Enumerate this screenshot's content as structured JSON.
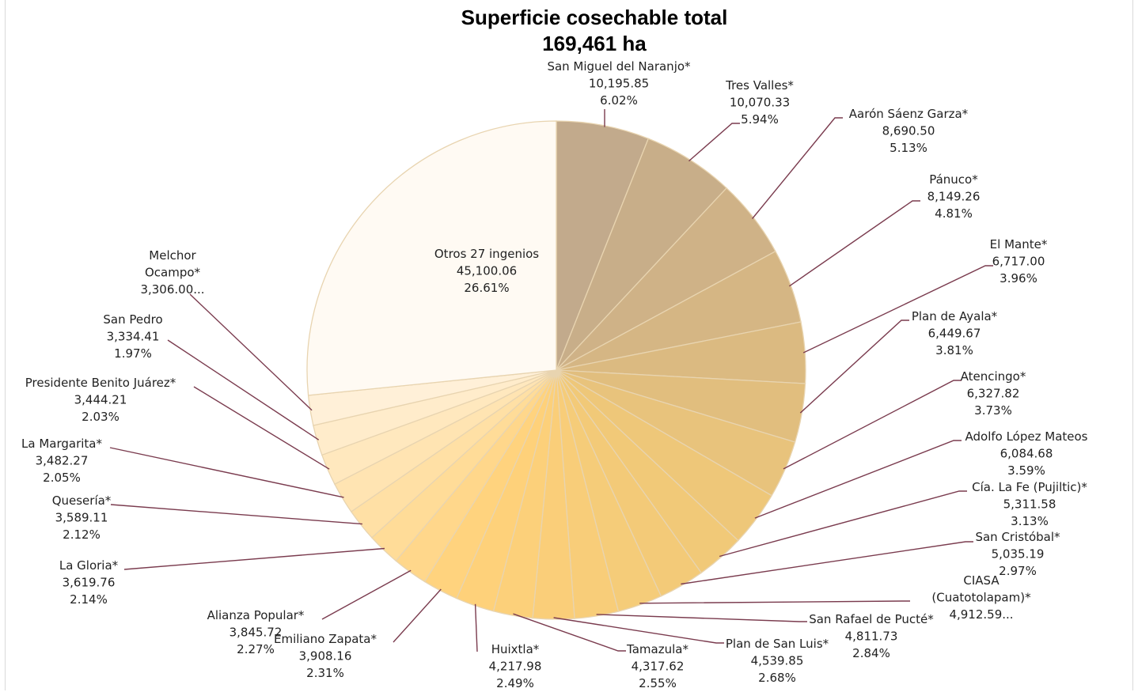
{
  "chart_data": {
    "type": "pie",
    "title": "Superficie cosechable total",
    "subtitle": "169,461 ha",
    "slices": [
      {
        "name": "San Miguel del Naranjo*",
        "value": 10195.85,
        "value_label": "10,195.85",
        "pct": "6.02%"
      },
      {
        "name": "Tres Valles*",
        "value": 10070.33,
        "value_label": "10,070.33",
        "pct": "5.94%"
      },
      {
        "name": "Aarón Sáenz Garza*",
        "value": 8690.5,
        "value_label": "8,690.50",
        "pct": "5.13%"
      },
      {
        "name": "Pánuco*",
        "value": 8149.26,
        "value_label": "8,149.26",
        "pct": "4.81%"
      },
      {
        "name": "El Mante*",
        "value": 6717.0,
        "value_label": "6,717.00",
        "pct": "3.96%"
      },
      {
        "name": "Plan de Ayala*",
        "value": 6449.67,
        "value_label": "6,449.67",
        "pct": "3.81%"
      },
      {
        "name": "Atencingo*",
        "value": 6327.82,
        "value_label": "6,327.82",
        "pct": "3.73%"
      },
      {
        "name": "Adolfo López Mateos",
        "value": 6084.68,
        "value_label": "6,084.68",
        "pct": "3.59%"
      },
      {
        "name": "Cía. La Fe (Pujiltic)*",
        "value": 5311.58,
        "value_label": "5,311.58",
        "pct": "3.13%"
      },
      {
        "name": "San Cristóbal*",
        "value": 5035.19,
        "value_label": "5,035.19",
        "pct": "2.97%"
      },
      {
        "name": "CIASA (Cuatotolapam)*",
        "value": 4912.59,
        "value_label": "4,912.59...",
        "pct": ""
      },
      {
        "name": "San Rafael de Pucté*",
        "value": 4811.73,
        "value_label": "4,811.73",
        "pct": "2.84%"
      },
      {
        "name": "Plan de San Luis*",
        "value": 4539.85,
        "value_label": "4,539.85",
        "pct": "2.68%"
      },
      {
        "name": "Tamazula*",
        "value": 4317.62,
        "value_label": "4,317.62",
        "pct": "2.55%"
      },
      {
        "name": "Huixtla*",
        "value": 4217.98,
        "value_label": "4,217.98",
        "pct": "2.49%"
      },
      {
        "name": "Emiliano Zapata*",
        "value": 3908.16,
        "value_label": "3,908.16",
        "pct": "2.31%"
      },
      {
        "name": "Alianza Popular*",
        "value": 3845.72,
        "value_label": "3,845.72",
        "pct": "2.27%"
      },
      {
        "name": "La Gloria*",
        "value": 3619.76,
        "value_label": "3,619.76",
        "pct": "2.14%"
      },
      {
        "name": "Quesería*",
        "value": 3589.11,
        "value_label": "3,589.11",
        "pct": "2.12%"
      },
      {
        "name": "La Margarita*",
        "value": 3482.27,
        "value_label": "3,482.27",
        "pct": "2.05%"
      },
      {
        "name": "Presidente Benito Juárez*",
        "value": 3444.21,
        "value_label": "3,444.21",
        "pct": "2.03%"
      },
      {
        "name": "San Pedro",
        "value": 3334.41,
        "value_label": "3,334.41",
        "pct": "1.97%"
      },
      {
        "name": "Melchor Ocampo*",
        "value": 3306.0,
        "value_label": "3,306.00...",
        "pct": ""
      },
      {
        "name": "Otros 27 ingenios",
        "value": 45100.06,
        "value_label": "45,100.06",
        "pct": "26.61%"
      }
    ],
    "colors": {
      "slice_dark": "#c2aa8c",
      "slice_gold": "#f0c878",
      "slice_yellow": "#ffd27a",
      "slice_light": "#fff0d8",
      "others_fill": "#fffaf3",
      "slice_border": "#e8d4b0",
      "leader": "#7a3b4e"
    }
  }
}
